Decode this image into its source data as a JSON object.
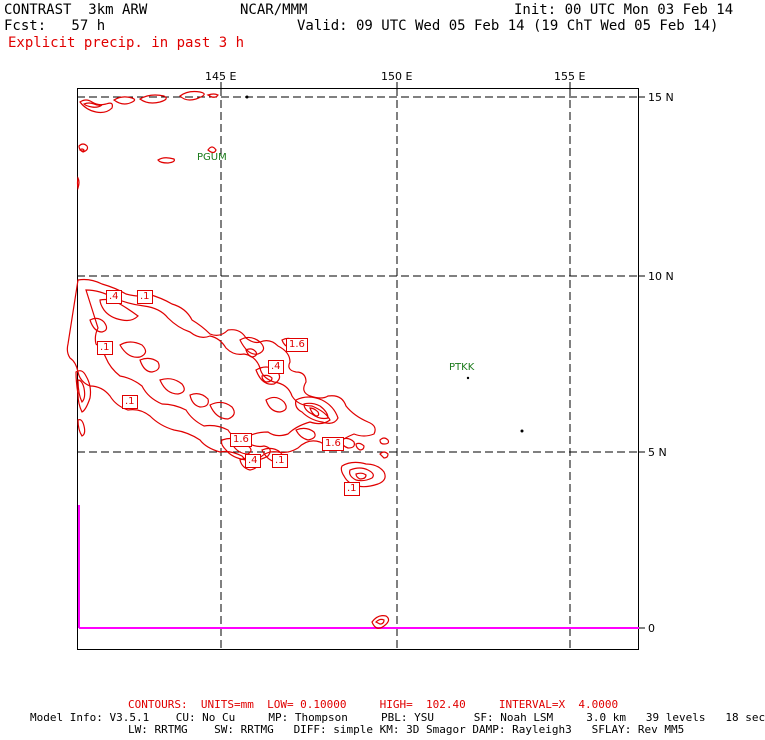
{
  "header": {
    "model": "CONTRAST  3km ARW",
    "center": "NCAR/MMM",
    "init": "Init: 00 UTC Mon 03 Feb 14",
    "fcst": "Fcst:   57 h",
    "valid": "Valid: 09 UTC Wed 05 Feb 14 (19 ChT Wed 05 Feb 14)",
    "field": "Explicit precip. in past 3 h"
  },
  "map": {
    "lon_labels": [
      "145 E",
      "150 E",
      "155 E"
    ],
    "lat_labels": [
      "15 N",
      "10 N",
      "5 N",
      "0"
    ],
    "stations": [
      "PGUM",
      "PTKK"
    ],
    "contour_labels": [
      ".4",
      ".1",
      ".1",
      ".1",
      "1.6",
      ".4",
      "1.6",
      "1.6",
      ".4",
      ".1",
      ".1"
    ],
    "colors": {
      "contour": "#e00000",
      "grid": "#000000",
      "boundary": "#ff00ff",
      "station": "#1a7a1a"
    }
  },
  "footer": {
    "contours": "CONTOURS:  UNITS=mm  LOW= 0.10000     HIGH=  102.40     INTERVAL=X  4.0000",
    "model_info": "Model Info: V3.5.1    CU: No Cu     MP: Thompson     PBL: YSU      SF: Noah LSM     3.0 km   39 levels   18 sec",
    "model_info2": "LW: RRTMG    SW: RRTMG   DIFF: simple KM: 3D Smagor DAMP: Rayleigh3   SFLAY: Rev MM5"
  }
}
